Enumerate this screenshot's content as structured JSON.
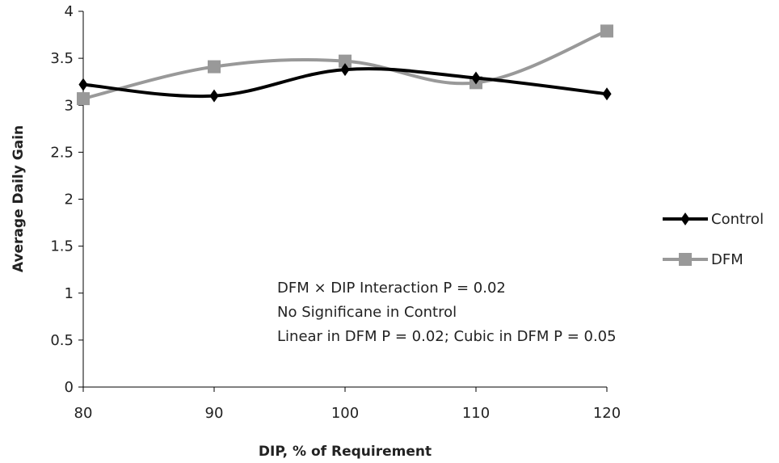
{
  "chart_data": {
    "type": "line",
    "title": "",
    "xlabel": "DIP, % of Requirement",
    "ylabel": "Average Daily Gain",
    "x": [
      80,
      90,
      100,
      110,
      120
    ],
    "xlim": [
      80,
      120
    ],
    "ylim": [
      0,
      4
    ],
    "yticks": [
      "0",
      "0.5",
      "1",
      "1.5",
      "2",
      "2.5",
      "3",
      "3.5",
      "4"
    ],
    "xticks": [
      "80",
      "90",
      "100",
      "110",
      "120"
    ],
    "grid": false,
    "legend_position": "right",
    "series": [
      {
        "name": "Control",
        "values": [
          3.22,
          3.1,
          3.38,
          3.29,
          3.12
        ],
        "color": "#000000",
        "marker": "diamond"
      },
      {
        "name": "DFM",
        "values": [
          3.07,
          3.41,
          3.47,
          3.24,
          3.79
        ],
        "color": "#999999",
        "marker": "square"
      }
    ],
    "annotations": [
      "DFM × DIP Interaction P = 0.02",
      "No Significane in Control",
      "Linear in DFM P = 0.02; Cubic in DFM P = 0.05"
    ]
  }
}
